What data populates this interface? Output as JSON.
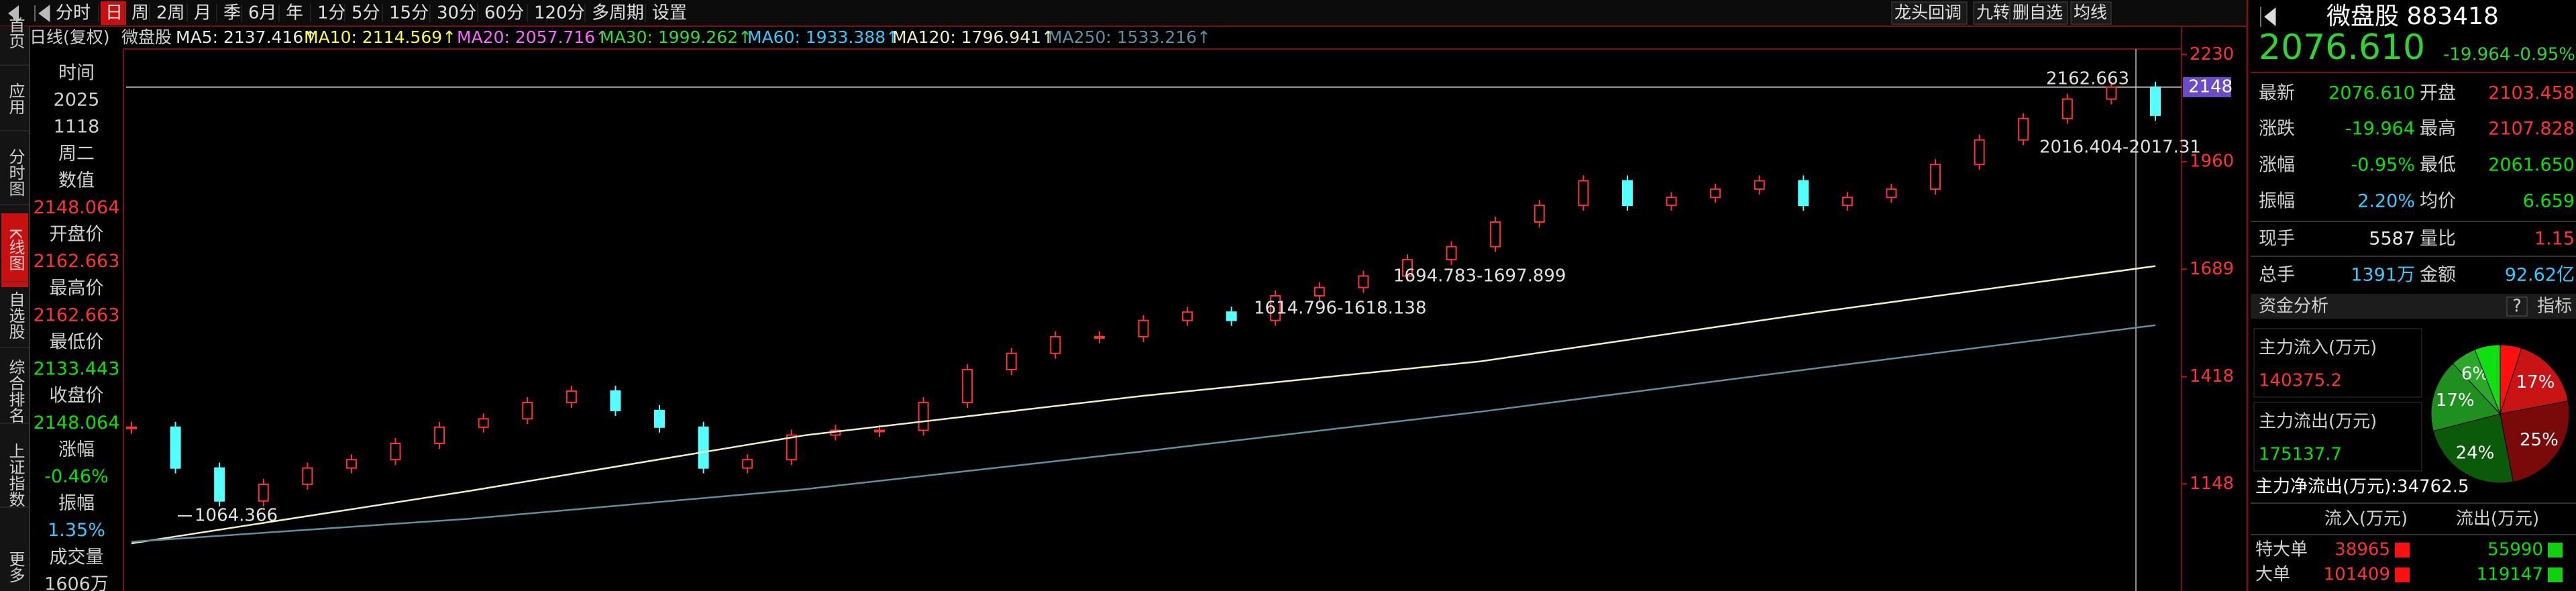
{
  "sidebar": [
    "首页",
    "应用",
    "分时图",
    "K线图",
    "自选股",
    "综合排名",
    "上证指数",
    "更多"
  ],
  "toolbar": {
    "periods": [
      "分时",
      "日",
      "周",
      "2周",
      "月",
      "季",
      "6月",
      "年",
      "1分",
      "5分",
      "15分",
      "30分",
      "60分",
      "120分",
      "多周期",
      "设置"
    ],
    "active": 1,
    "tools": [
      "龙头回调",
      "九转",
      "删自选",
      "均线"
    ]
  },
  "legend": {
    "mode": "日线(复权)",
    "name": "微盘股",
    "items": [
      {
        "label": "MA5: 2137.416↑",
        "color": "#e8e8e8"
      },
      {
        "label": "MA10: 2114.569↑",
        "color": "#ffff3c"
      },
      {
        "label": "MA20: 2057.716↑",
        "color": "#ff66ff"
      },
      {
        "label": "MA30: 1999.262↑",
        "color": "#33dd33"
      },
      {
        "label": "MA60: 1933.388↑",
        "color": "#33ccff"
      },
      {
        "label": "MA120: 1796.941↑",
        "color": "#f0f0c0"
      },
      {
        "label": "MA250: 1533.216↑",
        "color": "#5f8f9f"
      }
    ]
  },
  "info": [
    {
      "text": "时间",
      "color": "#d0d0d0"
    },
    {
      "text": "2025",
      "color": "#d0d0d0"
    },
    {
      "text": "1118",
      "color": "#d0d0d0"
    },
    {
      "text": "周二",
      "color": "#d0d0d0"
    },
    {
      "text": "数值",
      "color": "#d0d0d0"
    },
    {
      "text": "2148.064",
      "color": "#ff3232"
    },
    {
      "text": "开盘价",
      "color": "#d0d0d0"
    },
    {
      "text": "2162.663",
      "color": "#ff3232"
    },
    {
      "text": "最高价",
      "color": "#d0d0d0"
    },
    {
      "text": "2162.663",
      "color": "#ff3232"
    },
    {
      "text": "最低价",
      "color": "#d0d0d0"
    },
    {
      "text": "2133.443",
      "color": "#00e600"
    },
    {
      "text": "收盘价",
      "color": "#d0d0d0"
    },
    {
      "text": "2148.064",
      "color": "#00e600"
    },
    {
      "text": "涨幅",
      "color": "#d0d0d0"
    },
    {
      "text": "-0.46%",
      "color": "#00e600"
    },
    {
      "text": "振幅",
      "color": "#d0d0d0"
    },
    {
      "text": "1.35%",
      "color": "#33ccff"
    },
    {
      "text": "成交量",
      "color": "#d0d0d0"
    },
    {
      "text": "1606万",
      "color": "#d0d0d0"
    }
  ],
  "chart_data": [
    {
      "type": "kline",
      "ylim": [
        878,
        2251
      ],
      "yticks": [
        1148,
        1418,
        1689,
        1960,
        2230
      ],
      "last_price": 2148,
      "annotations": [
        "2162.663",
        "2016.404-2017.31",
        "1694.783-1697.899",
        "1614.796-1618.138",
        "1064.366"
      ],
      "series": [
        {
          "color": "#ff3232",
          "values": [
            1291,
            1188,
            1105,
            1147,
            1188,
            1209,
            1250,
            1291,
            1312,
            1353,
            1382,
            1333,
            1291,
            1188,
            1209,
            1271,
            1283,
            1283,
            1353,
            1436,
            1477,
            1519,
            1519,
            1560,
            1581,
            1560,
            1622,
            1643,
            1672,
            1713,
            1746,
            1808,
            1850,
            1912,
            1850,
            1870,
            1891,
            1912,
            1850,
            1870,
            1891,
            1953,
            2015,
            2069,
            2118,
            2148,
            2077
          ]
        },
        {
          "color": "#f0f0c0",
          "values": [
            998,
            1130,
            1271,
            1370,
            1457,
            1581,
            1697
          ]
        },
        {
          "color": "#5f8f9f",
          "values": [
            1002,
            1060,
            1135,
            1230,
            1330,
            1440,
            1548
          ]
        }
      ]
    },
    {
      "type": "pie",
      "values": [
        5,
        17,
        25,
        24,
        17,
        6,
        6
      ],
      "value_labels": [
        null,
        "17%",
        "25%",
        "24%",
        "17%",
        "6%",
        null
      ],
      "colors": [
        "#ff1010",
        "#c81414",
        "#7a0a0a",
        "#0a5a0a",
        "#1f8f1f",
        "#2aa82a",
        "#10e010"
      ]
    }
  ],
  "quote": {
    "name": "微盘股 883418",
    "price": "2076.610",
    "change": "-19.964",
    "pct": "-0.95%",
    "rows": [
      [
        {
          "text": "最新"
        },
        {
          "text": "2076.610",
          "color": "#00e600"
        },
        {
          "text": "开盘"
        },
        {
          "text": "2103.458",
          "color": "#ff3232"
        }
      ],
      [
        {
          "text": "涨跌"
        },
        {
          "text": "-19.964",
          "color": "#00e600"
        },
        {
          "text": "最高"
        },
        {
          "text": "2107.828",
          "color": "#ff3232"
        }
      ],
      [
        {
          "text": "涨幅"
        },
        {
          "text": "-0.95%",
          "color": "#00e600"
        },
        {
          "text": "最低"
        },
        {
          "text": "2061.650",
          "color": "#00e600"
        }
      ],
      [
        {
          "text": "振幅"
        },
        {
          "text": "2.20%",
          "color": "#33ccff"
        },
        {
          "text": "均价"
        },
        {
          "text": "6.659",
          "color": "#00e600"
        }
      ],
      [
        {
          "text": "现手"
        },
        {
          "text": "5587",
          "color": "#e8e8e8"
        },
        {
          "text": "量比"
        },
        {
          "text": "1.15",
          "color": "#ff3232"
        }
      ],
      [
        {
          "text": "总手"
        },
        {
          "text": "1391万",
          "color": "#33ccff"
        },
        {
          "text": "金额"
        },
        {
          "text": "92.62亿",
          "color": "#33ccff"
        }
      ]
    ]
  },
  "fund": {
    "title": "资金分析",
    "help": "?",
    "index": "指标",
    "inflow_label": "主力流入(万元)",
    "inflow": "140375.2",
    "outflow_label": "主力流出(万元)",
    "outflow": "175137.7",
    "net": "主力净流出(万元):34762.5",
    "headers": [
      "流入(万元)",
      "流出(万元)"
    ],
    "rows": [
      [
        "特大单",
        "38965",
        "55990"
      ],
      [
        "大单",
        "101409",
        "119147"
      ]
    ]
  }
}
